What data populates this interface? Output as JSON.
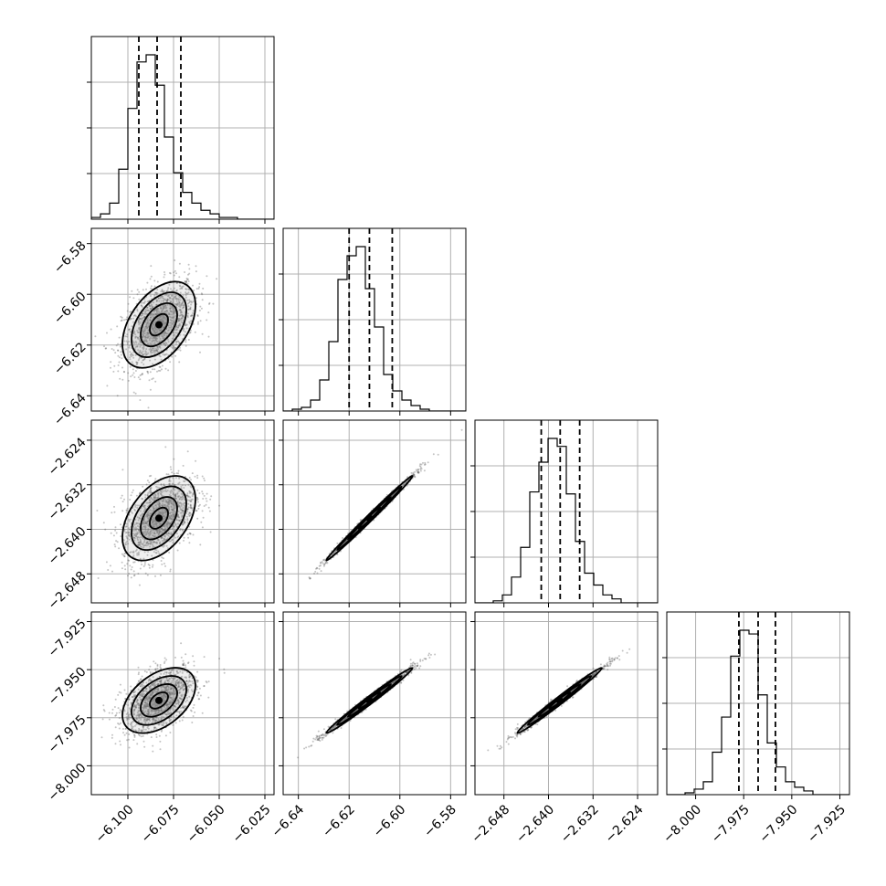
{
  "chart_data": {
    "type": "corner",
    "parameters": [
      {
        "range": [
          -6.12,
          -6.02
        ],
        "ticks": [
          -6.1,
          -6.075,
          -6.05,
          -6.025
        ],
        "tick_labels": [
          "−6.100",
          "−6.075",
          "−6.050",
          "−6.025"
        ],
        "mean": -6.083,
        "sigma": 0.01,
        "quantiles": [
          -6.094,
          -6.084,
          -6.071
        ],
        "hist_counts": [
          1,
          3,
          9,
          28,
          62,
          88,
          92,
          75,
          46,
          26,
          15,
          9,
          5,
          3,
          1,
          1,
          0,
          0,
          0,
          0
        ]
      },
      {
        "range": [
          -6.646,
          -6.574
        ],
        "ticks": [
          -6.64,
          -6.62,
          -6.6,
          -6.58
        ],
        "tick_labels": [
          "−6.64",
          "−6.62",
          "−6.60",
          "−6.58"
        ],
        "mean": -6.612,
        "sigma": 0.0085,
        "quantiles": [
          -6.62,
          -6.612,
          -6.603
        ],
        "hist_counts": [
          0,
          1,
          2,
          6,
          17,
          38,
          72,
          85,
          90,
          67,
          46,
          20,
          11,
          6,
          3,
          1,
          0,
          0,
          0,
          0
        ]
      },
      {
        "range": [
          -2.6532,
          -2.6204
        ],
        "ticks": [
          -2.648,
          -2.64,
          -2.632,
          -2.624
        ],
        "tick_labels": [
          "−2.648",
          "−2.640",
          "−2.632",
          "−2.624"
        ],
        "mean": -2.638,
        "sigma": 0.0038,
        "quantiles": [
          -2.6413,
          -2.6379,
          -2.6344
        ],
        "hist_counts": [
          0,
          0,
          1,
          4,
          13,
          28,
          56,
          71,
          83,
          79,
          55,
          31,
          15,
          9,
          4,
          2,
          0,
          0,
          0,
          0
        ]
      },
      {
        "range": [
          -8.015,
          -7.92
        ],
        "ticks": [
          -8.0,
          -7.975,
          -7.95,
          -7.925
        ],
        "tick_labels": [
          "−8.000",
          "−7.975",
          "−7.950",
          "−7.925"
        ],
        "mean": -7.966,
        "sigma": 0.0085,
        "quantiles": [
          -7.9775,
          -7.9675,
          -7.9585
        ],
        "hist_counts": [
          0,
          0,
          1,
          3,
          7,
          23,
          42,
          75,
          89,
          87,
          54,
          28,
          15,
          7,
          4,
          2,
          0,
          0,
          0,
          0
        ]
      }
    ],
    "correlations": {
      "1-0": 0.45,
      "2-0": 0.45,
      "3-0": 0.45,
      "2-1": 0.995,
      "3-1": 0.99,
      "3-2": 0.99
    },
    "diag_grid_fraction": [
      0.25,
      0.5,
      0.75
    ],
    "grid": true,
    "colors": {
      "line": "#000000",
      "grid": "#b0b0b0",
      "points": "#555555",
      "fill": "#888888"
    }
  }
}
